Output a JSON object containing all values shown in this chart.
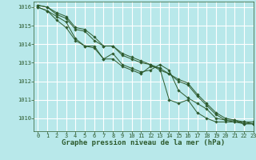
{
  "xlabel": "Graphe pression niveau de la mer (hPa)",
  "xlim": [
    -0.5,
    23
  ],
  "ylim": [
    1009.3,
    1016.3
  ],
  "yticks": [
    1010,
    1011,
    1012,
    1013,
    1014,
    1015,
    1016
  ],
  "xticks": [
    0,
    1,
    2,
    3,
    4,
    5,
    6,
    7,
    8,
    9,
    10,
    11,
    12,
    13,
    14,
    15,
    16,
    17,
    18,
    19,
    20,
    21,
    22,
    23
  ],
  "background_color": "#b8e8ea",
  "grid_color": "#ffffff",
  "grid_color2": "#c8d8d8",
  "line_color": "#2d5a2d",
  "series": [
    [
      1016.0,
      1015.8,
      1015.5,
      1015.2,
      1014.3,
      1013.9,
      1013.9,
      1013.2,
      1013.2,
      1012.8,
      1012.6,
      1012.4,
      1012.8,
      1012.7,
      1011.0,
      1010.8,
      1011.0,
      1010.3,
      1010.0,
      1009.8,
      1009.8,
      1009.8,
      1009.8,
      1009.8
    ],
    [
      1016.0,
      1015.8,
      1015.3,
      1014.9,
      1014.2,
      1013.9,
      1013.8,
      1013.2,
      1013.5,
      1012.9,
      1012.7,
      1012.5,
      1012.6,
      1012.9,
      1012.6,
      1011.5,
      1011.1,
      1010.8,
      1010.5,
      1010.0,
      1009.9,
      1009.9,
      1009.7,
      1009.7
    ],
    [
      1016.1,
      1016.0,
      1015.6,
      1015.4,
      1014.8,
      1014.7,
      1014.2,
      1013.9,
      1013.9,
      1013.5,
      1013.3,
      1013.1,
      1012.9,
      1012.7,
      1012.4,
      1012.1,
      1011.9,
      1011.3,
      1010.8,
      1010.3,
      1010.0,
      1009.9,
      1009.8,
      1009.7
    ],
    [
      1016.1,
      1016.0,
      1015.7,
      1015.5,
      1014.9,
      1014.8,
      1014.4,
      1013.9,
      1013.9,
      1013.4,
      1013.2,
      1013.0,
      1012.9,
      1012.6,
      1012.4,
      1012.0,
      1011.8,
      1011.2,
      1010.7,
      1010.2,
      1009.9,
      1009.8,
      1009.7,
      1009.7
    ]
  ],
  "marker": "D",
  "markersize": 1.8,
  "linewidth": 0.7,
  "tick_fontsize": 5.0,
  "label_fontsize": 6.5,
  "label_fontweight": "bold"
}
